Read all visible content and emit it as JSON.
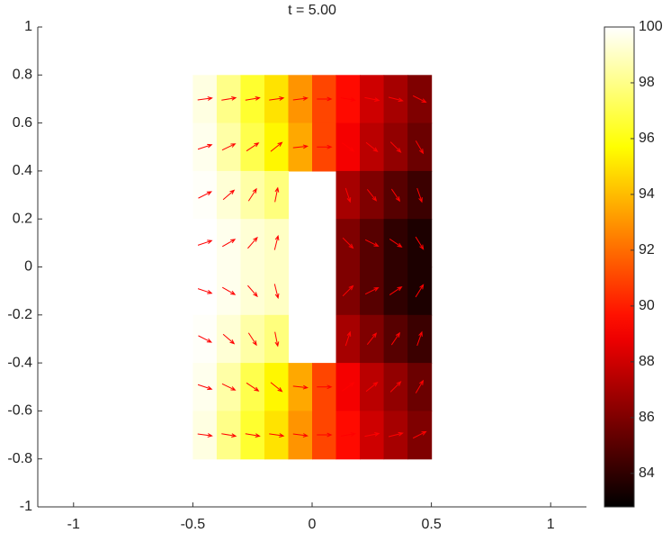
{
  "chart_data": {
    "type": "heatmap",
    "title": "t = 5.00",
    "colormap": "hot",
    "x": [
      -0.45,
      -0.35,
      -0.25,
      -0.15,
      -0.05,
      0.05,
      0.15,
      0.25,
      0.35,
      0.45
    ],
    "y": [
      0.7,
      0.5,
      0.3,
      0.1,
      -0.1,
      -0.3,
      -0.5,
      -0.7
    ],
    "cell_width": 0.1,
    "cell_height": 0.2,
    "values": [
      [
        99.5,
        98,
        96.5,
        95,
        93,
        91,
        89.5,
        88,
        87,
        86
      ],
      [
        99.7,
        98.5,
        97,
        95.5,
        93.5,
        91,
        89,
        87.5,
        86.5,
        85.5
      ],
      [
        99.9,
        99.3,
        98.5,
        97.8,
        null,
        null,
        87,
        86,
        85,
        84.3
      ],
      [
        100,
        99.7,
        99.3,
        99,
        null,
        null,
        86,
        85,
        84,
        83.5
      ],
      [
        100,
        99.7,
        99.3,
        99,
        null,
        null,
        86,
        85,
        84,
        83.5
      ],
      [
        99.9,
        99.3,
        98.5,
        97.8,
        null,
        null,
        87,
        86,
        85,
        84.3
      ],
      [
        99.7,
        98.5,
        97,
        95.5,
        93.5,
        91,
        89,
        87.5,
        86.5,
        85.5
      ],
      [
        99.5,
        98,
        96.5,
        95,
        93,
        91,
        89.5,
        88,
        87,
        86
      ]
    ],
    "xlim": [
      -1.15,
      1.15
    ],
    "ylim": [
      -1,
      1
    ],
    "xticks": [
      -1,
      -0.5,
      0,
      0.5,
      1
    ],
    "yticks": [
      -1,
      -0.8,
      -0.6,
      -0.4,
      -0.2,
      0,
      0.2,
      0.4,
      0.6,
      0.8,
      1
    ],
    "clim": [
      82.8,
      100
    ],
    "cticks": [
      84,
      86,
      88,
      90,
      92,
      94,
      96,
      98,
      100
    ],
    "arrow_color": "#ff0000"
  }
}
